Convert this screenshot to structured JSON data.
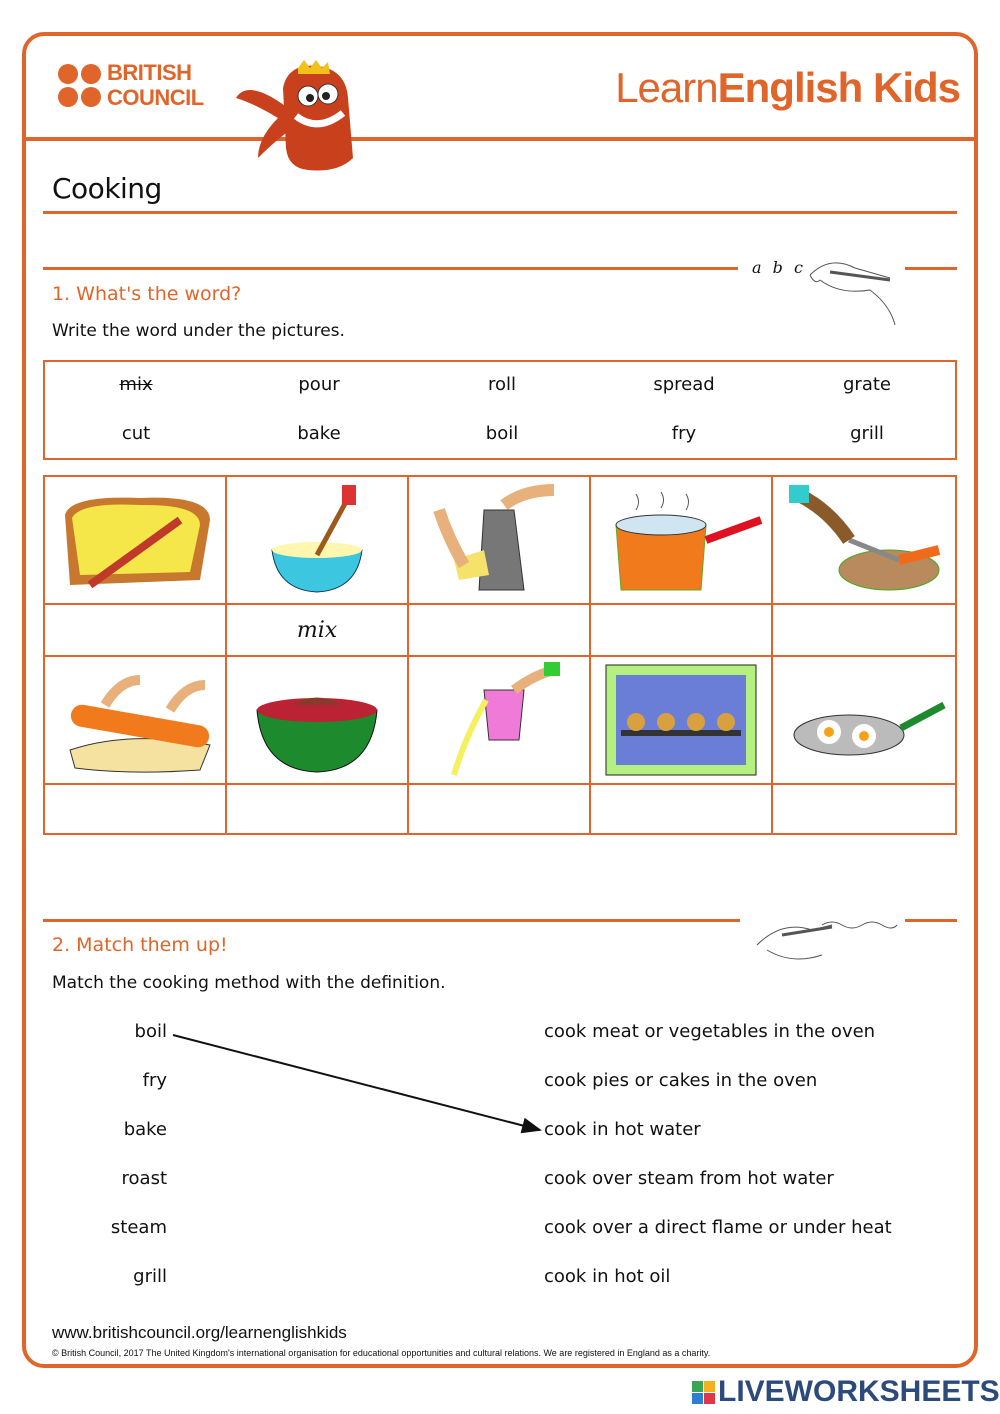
{
  "header": {
    "brand_left_line1": "BRITISH",
    "brand_left_line2": "COUNCIL",
    "brand_right_light": "Learn",
    "brand_right_bold": "English",
    "brand_right_kids": "Kids"
  },
  "title": "Cooking",
  "section1": {
    "heading": "1. What's the word?",
    "instruction": "Write the word under the pictures.",
    "abc": "a b c",
    "word_bank": [
      [
        "mix",
        "pour",
        "roll",
        "spread",
        "grate"
      ],
      [
        "cut",
        "bake",
        "boil",
        "fry",
        "grill"
      ]
    ],
    "crossed_word": "mix",
    "pictures_row1": [
      "spread",
      "mix",
      "grate",
      "boil",
      "cut"
    ],
    "answers_row1": [
      "",
      "mix",
      "",
      "",
      ""
    ],
    "pictures_row2": [
      "roll",
      "grill",
      "pour",
      "bake",
      "fry"
    ],
    "answers_row2": [
      "",
      "",
      "",
      "",
      ""
    ]
  },
  "section2": {
    "heading": "2. Match them up!",
    "instruction": "Match the cooking method with the definition.",
    "methods": [
      "boil",
      "fry",
      "bake",
      "roast",
      "steam",
      "grill"
    ],
    "definitions": [
      "cook meat or vegetables in the oven",
      "cook pies or cakes in the oven",
      "cook in hot water",
      "cook over steam from hot water",
      "cook over a direct flame or under heat",
      "cook in hot oil"
    ],
    "matched": [
      {
        "from": "boil",
        "to": "cook in hot water"
      }
    ]
  },
  "footer": {
    "url": "www.britishcouncil.org/learnenglishkids",
    "copyright": "© British Council, 2017 The United Kingdom's international organisation for educational opportunities and cultural relations. We are registered in England as a charity."
  },
  "watermark": {
    "text": "LIVEWORKSHEETS",
    "logo_letters": "LIVE"
  },
  "colors": {
    "accent": "#e0652a",
    "watermark": "#2c4a7c"
  }
}
